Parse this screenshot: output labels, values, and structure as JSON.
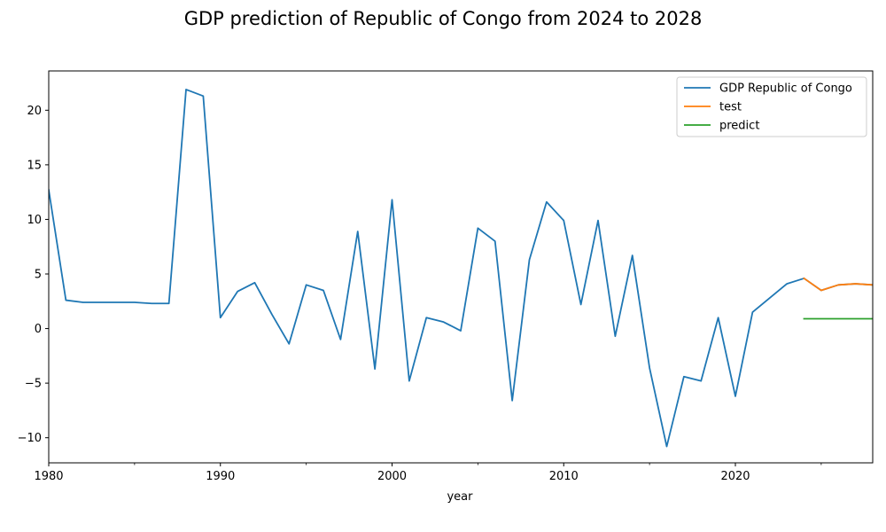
{
  "chart_data": {
    "type": "line",
    "title": "GDP prediction of Republic of Congo from 2024 to 2028",
    "xlabel": "year",
    "ylabel": "",
    "xlim": [
      1980,
      2028
    ],
    "ylim": [
      -12.3,
      23.6
    ],
    "x_major_ticks": [
      1980,
      1990,
      2000,
      2010,
      2020
    ],
    "x_minor_ticks": [
      1985,
      1995,
      2005,
      2015,
      2025
    ],
    "y_ticks": [
      -10,
      -5,
      0,
      5,
      10,
      15,
      20
    ],
    "x_tick_labels": [
      "1980",
      "1990",
      "2000",
      "2010",
      "2020"
    ],
    "y_tick_labels": [
      "−10",
      "−5",
      "0",
      "5",
      "10",
      "15",
      "20"
    ],
    "grid": false,
    "legend_position": "top-right",
    "series": [
      {
        "name": "GDP Republic of Congo",
        "color": "#1f77b4",
        "x": [
          1980,
          1981,
          1982,
          1983,
          1984,
          1985,
          1986,
          1987,
          1988,
          1989,
          1990,
          1991,
          1992,
          1993,
          1994,
          1995,
          1996,
          1997,
          1998,
          1999,
          2000,
          2001,
          2002,
          2003,
          2004,
          2005,
          2006,
          2007,
          2008,
          2009,
          2010,
          2011,
          2012,
          2013,
          2014,
          2015,
          2016,
          2017,
          2018,
          2019,
          2020,
          2021,
          2022,
          2023,
          2024,
          2025,
          2026,
          2027,
          2028
        ],
        "values": [
          12.7,
          2.6,
          2.4,
          2.4,
          2.4,
          2.4,
          2.3,
          2.3,
          21.9,
          21.3,
          1.0,
          3.4,
          4.2,
          1.3,
          -1.4,
          4.0,
          3.5,
          -1.0,
          8.9,
          -3.7,
          11.8,
          -4.8,
          1.0,
          0.6,
          -0.2,
          9.2,
          8.0,
          -6.6,
          6.3,
          11.6,
          9.9,
          2.2,
          9.9,
          -0.7,
          6.7,
          -3.6,
          -10.8,
          -4.4,
          -4.8,
          1.0,
          -6.2,
          1.5,
          2.8,
          4.1,
          4.6,
          3.5,
          4.0,
          4.1,
          4.0
        ]
      },
      {
        "name": "test",
        "color": "#ff7f0e",
        "x": [
          2024,
          2025,
          2026,
          2027,
          2028
        ],
        "values": [
          4.6,
          3.5,
          4.0,
          4.1,
          4.0
        ]
      },
      {
        "name": "predict",
        "color": "#2ca02c",
        "x": [
          2024,
          2025,
          2026,
          2027,
          2028
        ],
        "values": [
          0.9,
          0.9,
          0.9,
          0.9,
          0.9
        ]
      }
    ]
  }
}
